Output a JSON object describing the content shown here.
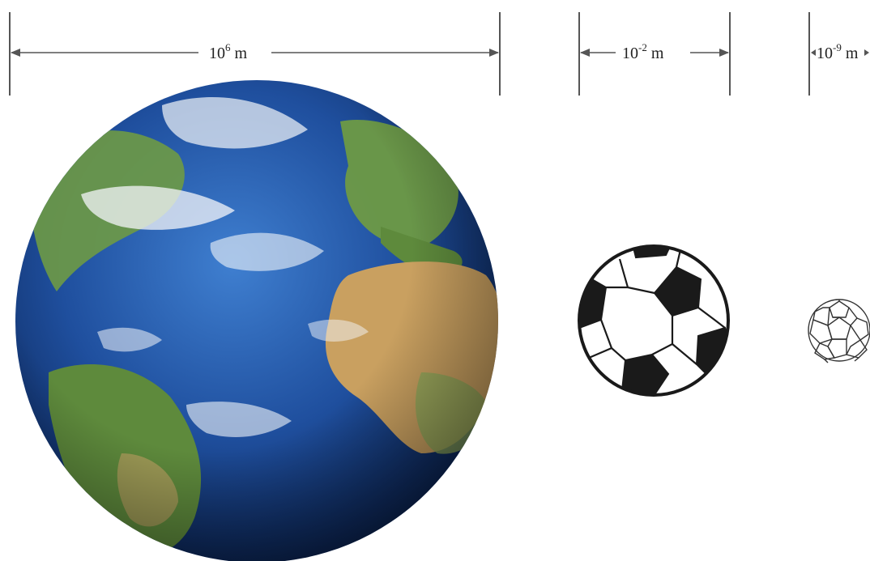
{
  "title": "",
  "scales": [
    {
      "id": "earth",
      "base": "10",
      "exponent": "6",
      "unit": "m",
      "object": "earth"
    },
    {
      "id": "ball",
      "base": "10",
      "exponent": "-2",
      "unit": "m",
      "object": "soccer-ball"
    },
    {
      "id": "buckyball",
      "base": "10",
      "exponent": "-9",
      "unit": "m",
      "object": "buckminsterfullerene-molecule"
    }
  ],
  "colors": {
    "line": "#555555",
    "ocean": "#1f4f9e",
    "land_green": "#6e9a45",
    "land_desert": "#c9a060",
    "cloud": "#f4f6fa",
    "ball_black": "#1a1a1a",
    "molecule": "#333333"
  }
}
